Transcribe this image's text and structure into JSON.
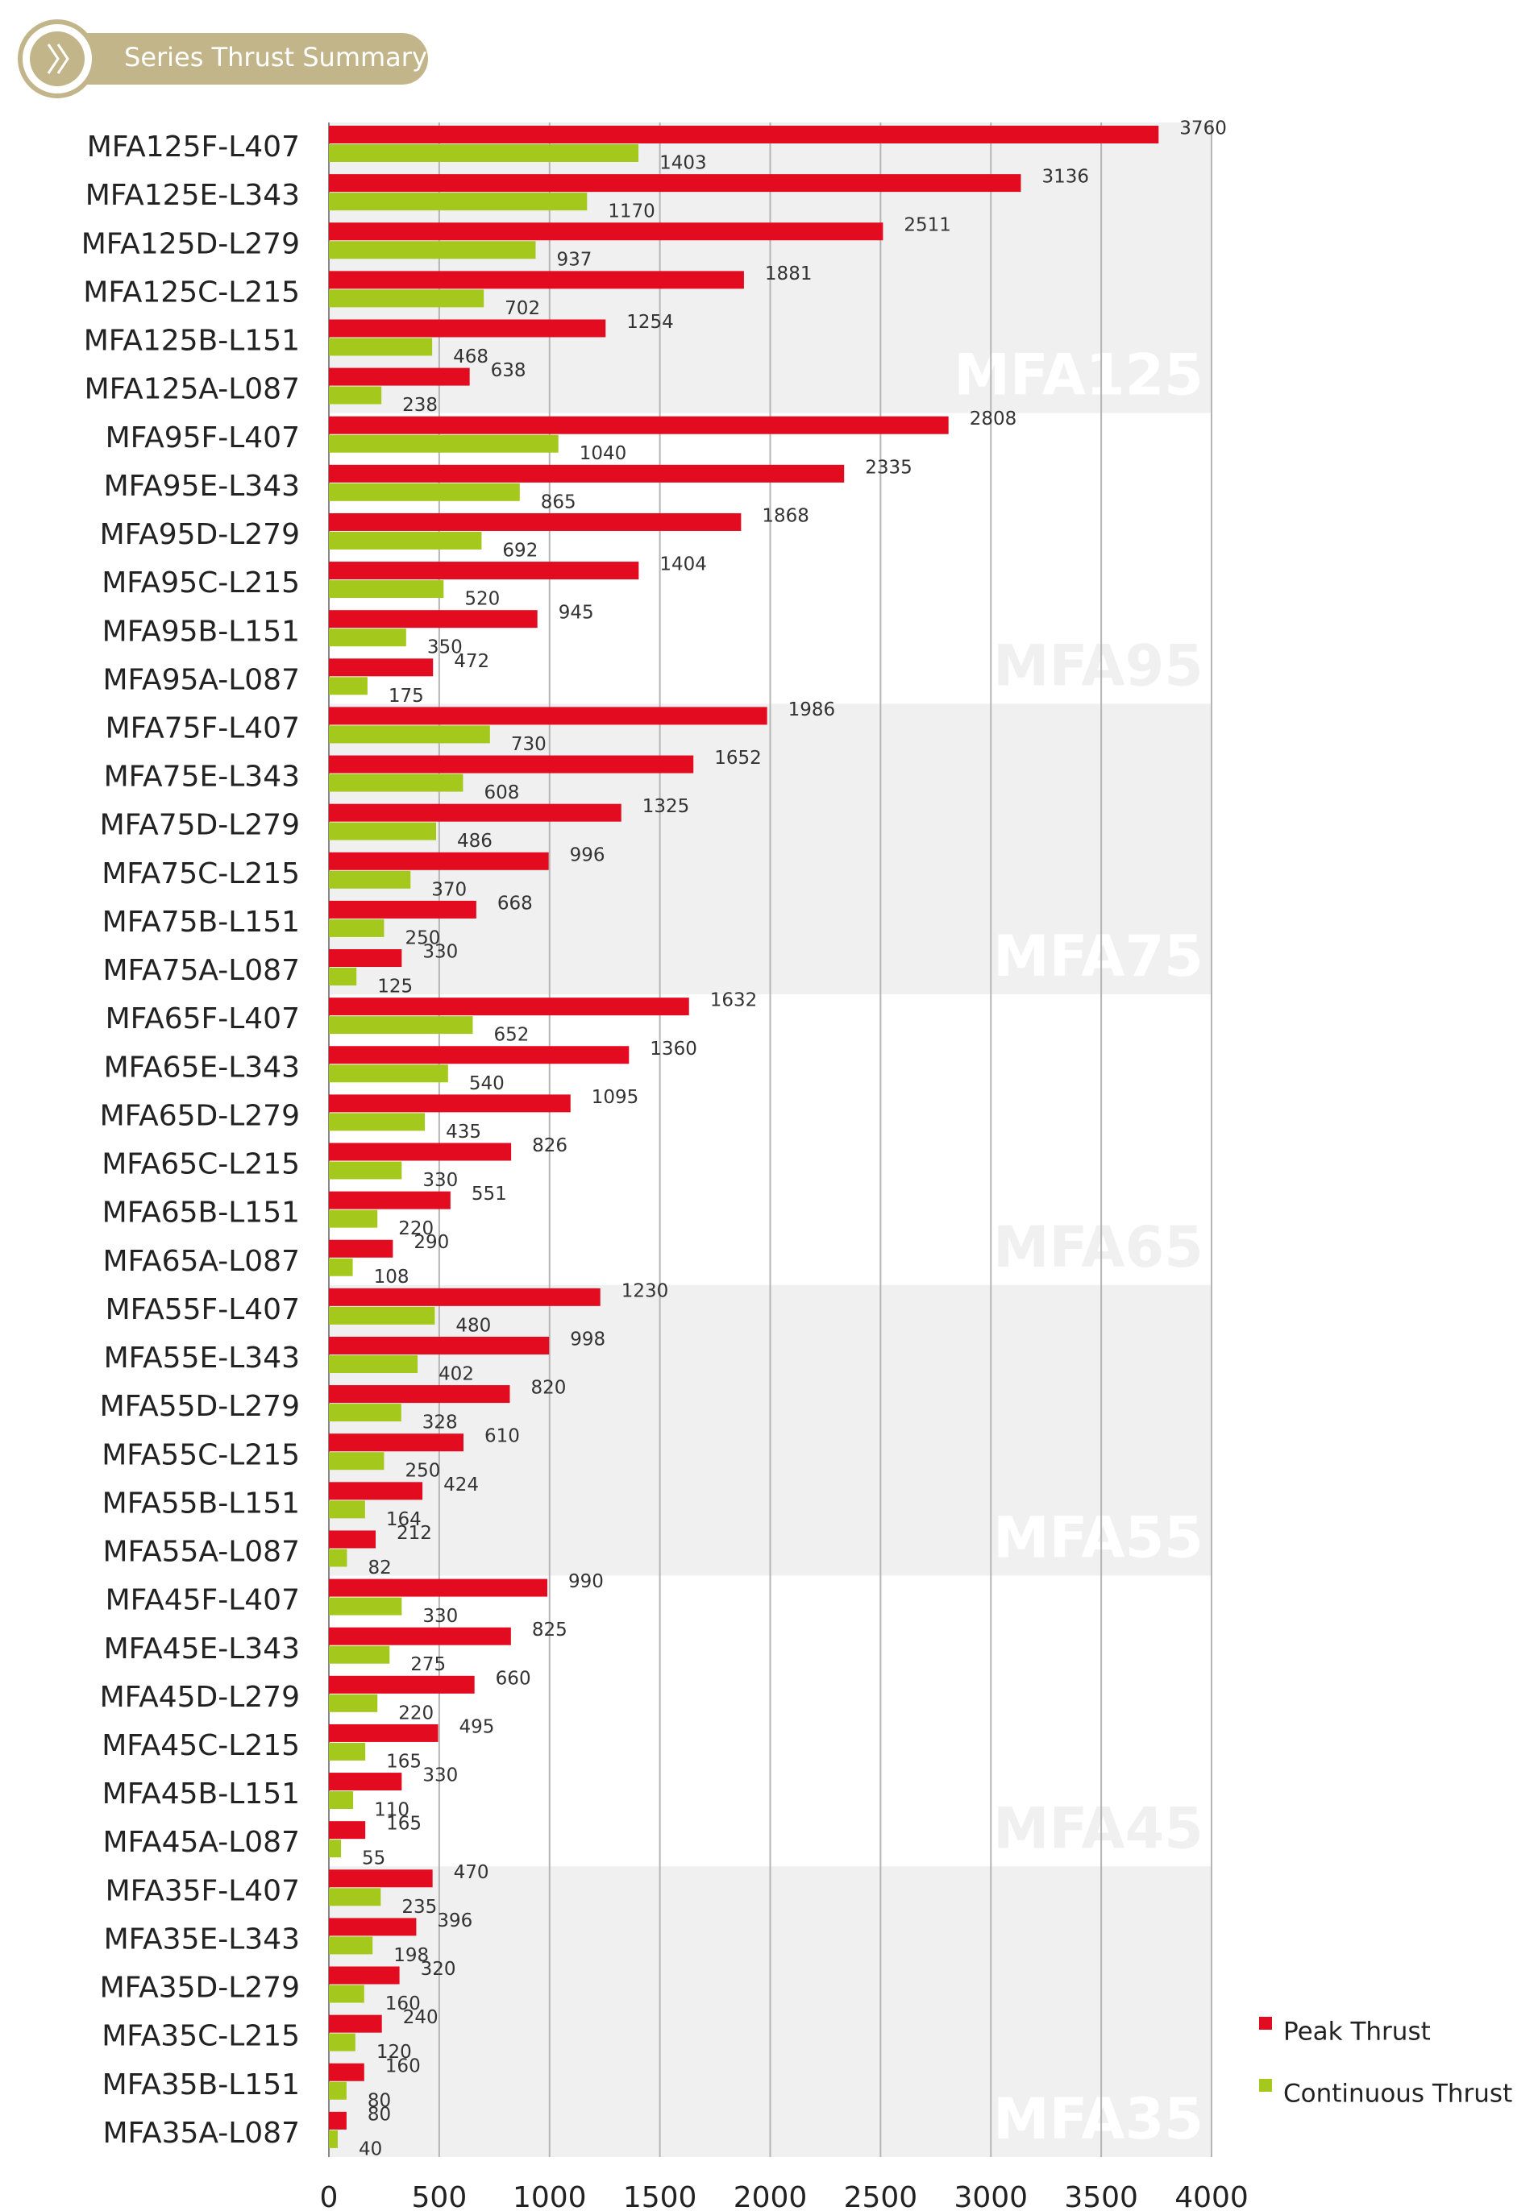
{
  "chart_data": {
    "type": "hbar",
    "title": "Series Thrust Summary",
    "categories": [
      "MFA125F-L407",
      "MFA125E-L343",
      "MFA125D-L279",
      "MFA125C-L215",
      "MFA125B-L151",
      "MFA125A-L087",
      "MFA95F-L407",
      "MFA95E-L343",
      "MFA95D-L279",
      "MFA95C-L215",
      "MFA95B-L151",
      "MFA95A-L087",
      "MFA75F-L407",
      "MFA75E-L343",
      "MFA75D-L279",
      "MFA75C-L215",
      "MFA75B-L151",
      "MFA75A-L087",
      "MFA65F-L407",
      "MFA65E-L343",
      "MFA65D-L279",
      "MFA65C-L215",
      "MFA65B-L151",
      "MFA65A-L087",
      "MFA55F-L407",
      "MFA55E-L343",
      "MFA55D-L279",
      "MFA55C-L215",
      "MFA55B-L151",
      "MFA55A-L087",
      "MFA45F-L407",
      "MFA45E-L343",
      "MFA45D-L279",
      "MFA45C-L215",
      "MFA45B-L151",
      "MFA45A-L087",
      "MFA35F-L407",
      "MFA35E-L343",
      "MFA35D-L279",
      "MFA35C-L215",
      "MFA35B-L151",
      "MFA35A-L087"
    ],
    "series": [
      {
        "name": "Peak Thrust",
        "color": "#e30b1f",
        "values": [
          3760,
          3136,
          2511,
          1881,
          1254,
          638,
          2808,
          2335,
          1868,
          1404,
          945,
          472,
          1986,
          1652,
          1325,
          996,
          668,
          330,
          1632,
          1360,
          1095,
          826,
          551,
          290,
          1230,
          998,
          820,
          610,
          424,
          212,
          990,
          825,
          660,
          495,
          330,
          165,
          470,
          396,
          320,
          240,
          160,
          80
        ]
      },
      {
        "name": "Continuous Thrust",
        "color": "#a5c81c",
        "values": [
          1403,
          1170,
          937,
          702,
          468,
          238,
          1040,
          865,
          692,
          520,
          350,
          175,
          730,
          608,
          486,
          370,
          250,
          125,
          652,
          540,
          435,
          330,
          220,
          108,
          480,
          402,
          328,
          250,
          164,
          82,
          330,
          275,
          220,
          165,
          110,
          55,
          235,
          198,
          160,
          120,
          80,
          40
        ]
      }
    ],
    "groups": [
      "MFA125",
      "MFA95",
      "MFA75",
      "MFA65",
      "MFA55",
      "MFA45",
      "MFA35"
    ],
    "xlim": [
      0,
      4000
    ],
    "xticks": [
      0,
      500,
      1000,
      1500,
      2000,
      2500,
      3000,
      3500,
      4000
    ],
    "grid": true,
    "legend": "bottom-right"
  }
}
